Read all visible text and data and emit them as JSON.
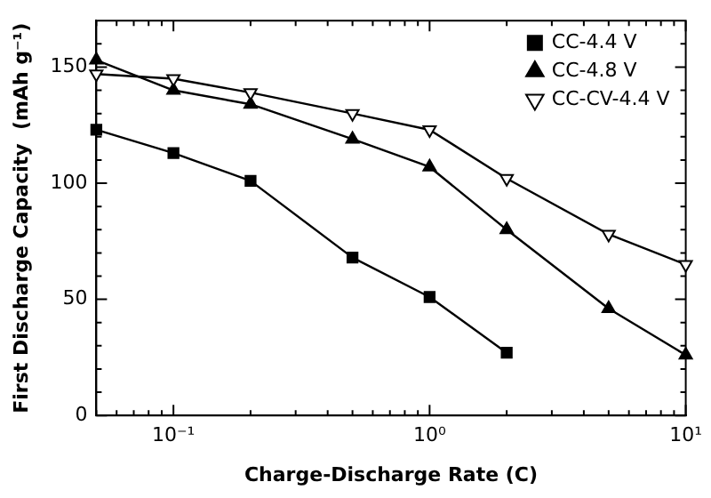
{
  "chart_data": {
    "type": "line",
    "xlabel": "Charge-Discharge Rate (C)",
    "ylabel": "First Discharge Capacity  (mAh g⁻¹)",
    "log": "x",
    "legend": "top right",
    "line_style": "solid",
    "xlim": [
      0.05,
      10
    ],
    "xticks": [
      {
        "value": 0.05,
        "label": null
      },
      {
        "value": 0.06,
        "label": null
      },
      {
        "value": 0.07,
        "label": null
      },
      {
        "value": 0.08,
        "label": null
      },
      {
        "value": 0.09,
        "label": null
      },
      {
        "value": 0.1,
        "label": "10⁻¹"
      },
      {
        "value": 0.2,
        "label": null
      },
      {
        "value": 0.3,
        "label": null
      },
      {
        "value": 0.4,
        "label": null
      },
      {
        "value": 0.5,
        "label": null
      },
      {
        "value": 0.6,
        "label": null
      },
      {
        "value": 0.7,
        "label": null
      },
      {
        "value": 0.8,
        "label": null
      },
      {
        "value": 0.9,
        "label": null
      },
      {
        "value": 1,
        "label": "10⁰"
      },
      {
        "value": 2,
        "label": null
      },
      {
        "value": 3,
        "label": null
      },
      {
        "value": 4,
        "label": null
      },
      {
        "value": 5,
        "label": null
      },
      {
        "value": 6,
        "label": null
      },
      {
        "value": 7,
        "label": null
      },
      {
        "value": 8,
        "label": null
      },
      {
        "value": 9,
        "label": null
      },
      {
        "value": 10,
        "label": "10¹"
      }
    ],
    "ylim": [
      0,
      170
    ],
    "yticks": [
      0,
      {
        "value": 10,
        "label": null
      },
      {
        "value": 20,
        "label": null
      },
      {
        "value": 30,
        "label": null
      },
      {
        "value": 40,
        "label": null
      },
      50,
      {
        "value": 60,
        "label": null
      },
      {
        "value": 70,
        "label": null
      },
      {
        "value": 80,
        "label": null
      },
      {
        "value": 90,
        "label": null
      },
      100,
      {
        "value": 110,
        "label": null
      },
      {
        "value": 120,
        "label": null
      },
      {
        "value": 130,
        "label": null
      },
      {
        "value": 140,
        "label": null
      },
      150,
      {
        "value": 160,
        "label": null
      }
    ],
    "series": [
      {
        "name": "CC-4.4 V",
        "color": "#000000",
        "marker": "square",
        "x": [
          0.05,
          0.1,
          0.2,
          0.5,
          1,
          2
        ],
        "values": [
          123,
          113,
          101,
          68,
          51,
          27
        ]
      },
      {
        "name": "CC-4.8 V",
        "color": "#000000",
        "marker": "triangle",
        "x": [
          0.05,
          0.1,
          0.2,
          0.5,
          1,
          2,
          5,
          10
        ],
        "values": [
          153,
          140,
          134,
          119,
          107,
          80,
          46,
          26
        ]
      },
      {
        "name": "CC-CV-4.4 V",
        "color": "#000000",
        "marker": "triangle-down",
        "x": [
          0.05,
          0.1,
          0.2,
          0.5,
          1,
          2,
          5,
          10
        ],
        "values": [
          147,
          145,
          139,
          130,
          123,
          102,
          78,
          65
        ]
      }
    ]
  }
}
